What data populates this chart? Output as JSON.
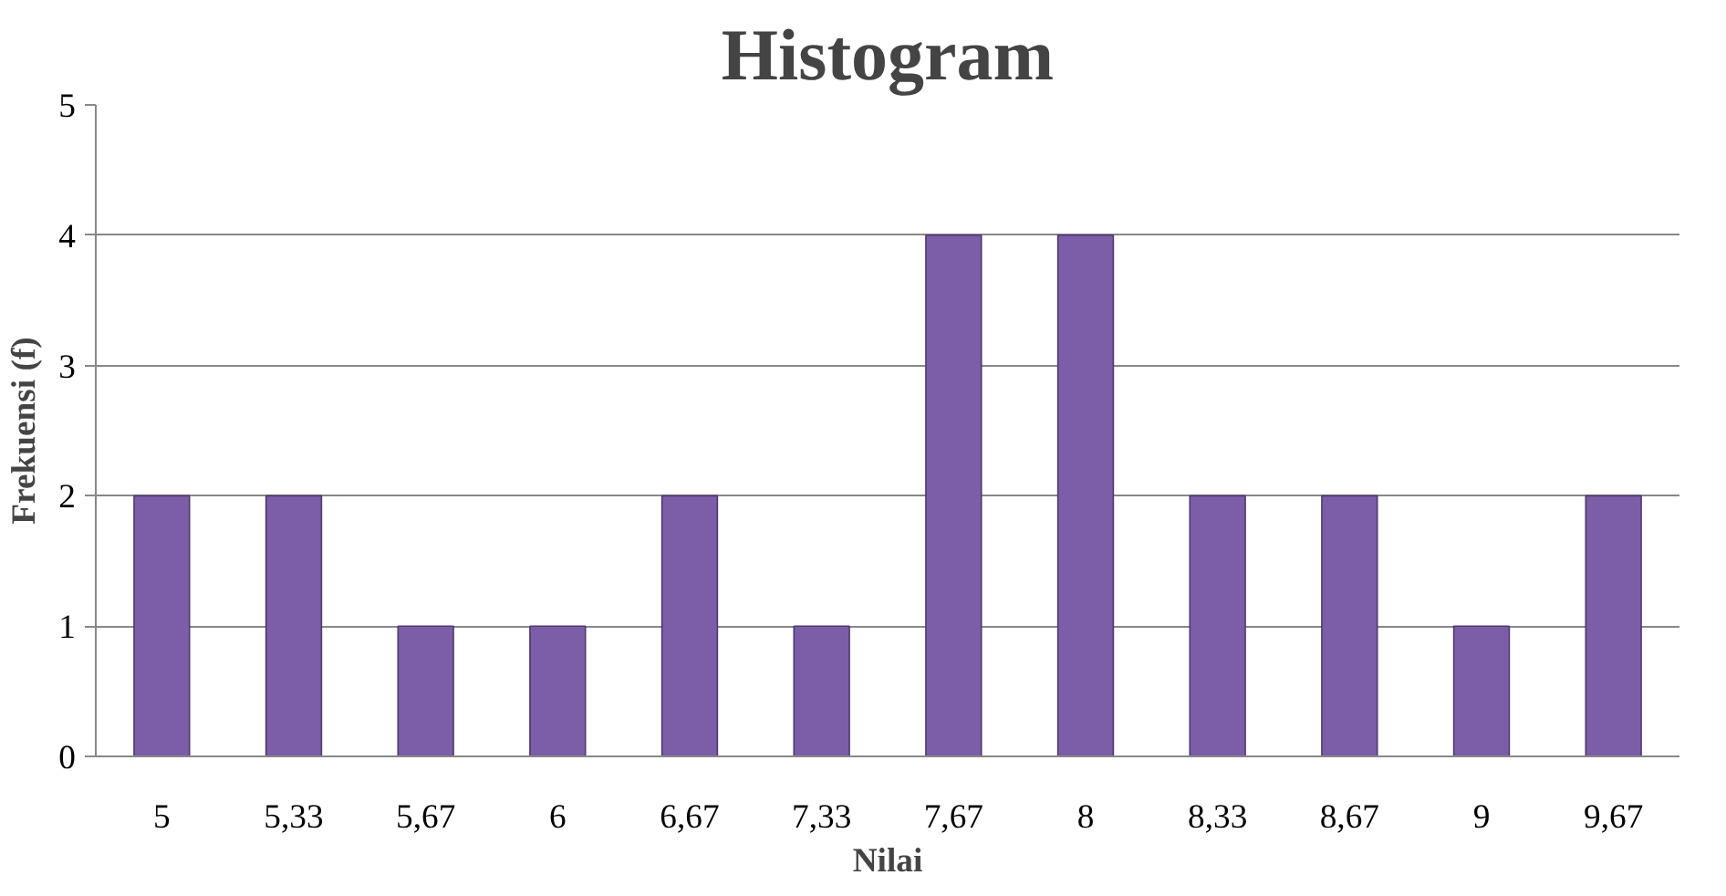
{
  "chart_data": {
    "type": "bar",
    "title": "Histogram",
    "xlabel": "Nilai",
    "ylabel": "Frekuensi (f)",
    "categories": [
      "5",
      "5,33",
      "5,67",
      "6",
      "6,67",
      "7,33",
      "7,67",
      "8",
      "8,33",
      "8,67",
      "9",
      "9,67"
    ],
    "values": [
      2,
      2,
      1,
      1,
      2,
      1,
      4,
      4,
      2,
      2,
      1,
      2
    ],
    "color": "#7b5ea7",
    "ylim": [
      0,
      5
    ],
    "yticks": [
      0,
      1,
      2,
      3,
      4,
      5
    ],
    "grid": "y"
  }
}
